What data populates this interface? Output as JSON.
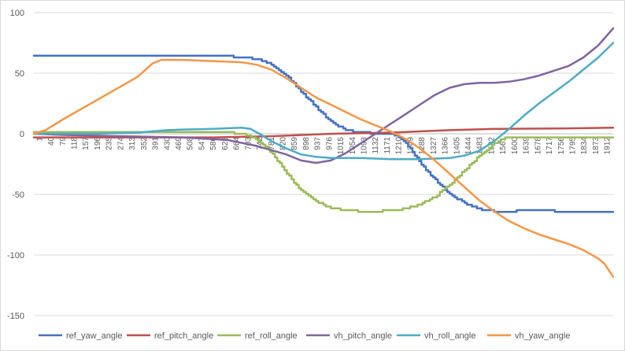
{
  "chart_data": {
    "type": "line",
    "title": "",
    "xlabel": "",
    "ylabel": "",
    "ylim": [
      -150,
      100
    ],
    "yticks": [
      100,
      50,
      0,
      -50,
      -100,
      -150
    ],
    "xlim": [
      1,
      1950
    ],
    "xtick_labels": [
      "1",
      "40",
      "79",
      "118",
      "157",
      "196",
      "235",
      "274",
      "313",
      "352",
      "391",
      "430",
      "469",
      "508",
      "547",
      "586",
      "625",
      "664",
      "703",
      "742",
      "781",
      "820",
      "859",
      "898",
      "937",
      "976",
      "1015",
      "1054",
      "1093",
      "1132",
      "1171",
      "1210",
      "1249",
      "1288",
      "1327",
      "1366",
      "1405",
      "1444",
      "1483",
      "1522",
      "1561",
      "1600",
      "1639",
      "1678",
      "1717",
      "1756",
      "1795",
      "1834",
      "1873",
      "1912"
    ],
    "grid": true,
    "legend_position": "bottom",
    "series": [
      {
        "name": "ref_yaw_angle",
        "color": "#4472C4",
        "stepped": true,
        "points": [
          [
            1,
            64
          ],
          [
            500,
            64
          ],
          [
            650,
            64
          ],
          [
            720,
            63
          ],
          [
            760,
            61
          ],
          [
            800,
            57
          ],
          [
            850,
            48
          ],
          [
            900,
            35
          ],
          [
            950,
            22
          ],
          [
            1000,
            10
          ],
          [
            1050,
            3
          ],
          [
            1100,
            1
          ],
          [
            1150,
            0.5
          ],
          [
            1200,
            0
          ],
          [
            1230,
            -3
          ],
          [
            1260,
            -10
          ],
          [
            1290,
            -20
          ],
          [
            1320,
            -30
          ],
          [
            1360,
            -40
          ],
          [
            1400,
            -50
          ],
          [
            1450,
            -57
          ],
          [
            1500,
            -62
          ],
          [
            1550,
            -64
          ],
          [
            1600,
            -64
          ],
          [
            1650,
            -63.5
          ],
          [
            1700,
            -63.5
          ],
          [
            1800,
            -64
          ],
          [
            1950,
            -64
          ]
        ]
      },
      {
        "name": "ref_pitch_angle",
        "color": "#C0504D",
        "stepped": false,
        "points": [
          [
            1,
            -3
          ],
          [
            300,
            -3
          ],
          [
            600,
            -3
          ],
          [
            800,
            -2
          ],
          [
            1000,
            0
          ],
          [
            1200,
            1
          ],
          [
            1400,
            3
          ],
          [
            1550,
            4
          ],
          [
            1800,
            4.5
          ],
          [
            1950,
            5
          ]
        ]
      },
      {
        "name": "ref_roll_angle",
        "color": "#9BBB59",
        "stepped": true,
        "points": [
          [
            1,
            1
          ],
          [
            400,
            1
          ],
          [
            660,
            1
          ],
          [
            700,
            0
          ],
          [
            740,
            -3
          ],
          [
            780,
            -10
          ],
          [
            820,
            -22
          ],
          [
            860,
            -35
          ],
          [
            900,
            -47
          ],
          [
            950,
            -56
          ],
          [
            1000,
            -61
          ],
          [
            1050,
            -63
          ],
          [
            1100,
            -64
          ],
          [
            1150,
            -64
          ],
          [
            1200,
            -63.5
          ],
          [
            1250,
            -62
          ],
          [
            1300,
            -58
          ],
          [
            1350,
            -52
          ],
          [
            1400,
            -42
          ],
          [
            1450,
            -30
          ],
          [
            1500,
            -18
          ],
          [
            1550,
            -8
          ],
          [
            1580,
            -4
          ],
          [
            1600,
            -3
          ],
          [
            1700,
            -3
          ],
          [
            1950,
            -3
          ]
        ]
      },
      {
        "name": "vh_pitch_angle",
        "color": "#8064A2",
        "stepped": false,
        "points": [
          [
            1,
            0
          ],
          [
            100,
            -1
          ],
          [
            300,
            -2
          ],
          [
            500,
            -3
          ],
          [
            650,
            -5
          ],
          [
            750,
            -10
          ],
          [
            850,
            -17
          ],
          [
            900,
            -22
          ],
          [
            950,
            -24
          ],
          [
            1000,
            -22
          ],
          [
            1050,
            -16
          ],
          [
            1100,
            -8
          ],
          [
            1150,
            0
          ],
          [
            1200,
            8
          ],
          [
            1250,
            16
          ],
          [
            1300,
            24
          ],
          [
            1350,
            32
          ],
          [
            1400,
            38
          ],
          [
            1450,
            41
          ],
          [
            1500,
            42
          ],
          [
            1550,
            42
          ],
          [
            1600,
            43
          ],
          [
            1650,
            45
          ],
          [
            1700,
            48
          ],
          [
            1750,
            52
          ],
          [
            1800,
            56
          ],
          [
            1850,
            63
          ],
          [
            1900,
            73
          ],
          [
            1950,
            87
          ]
        ]
      },
      {
        "name": "vh_roll_angle",
        "color": "#4BACC6",
        "stepped": false,
        "points": [
          [
            1,
            0
          ],
          [
            200,
            0
          ],
          [
            350,
            1
          ],
          [
            400,
            2
          ],
          [
            450,
            3
          ],
          [
            500,
            3.5
          ],
          [
            600,
            4
          ],
          [
            700,
            5
          ],
          [
            730,
            4
          ],
          [
            760,
            0
          ],
          [
            800,
            -6
          ],
          [
            850,
            -12
          ],
          [
            900,
            -17
          ],
          [
            950,
            -19
          ],
          [
            1000,
            -20
          ],
          [
            1100,
            -20
          ],
          [
            1200,
            -21
          ],
          [
            1300,
            -21
          ],
          [
            1400,
            -20
          ],
          [
            1450,
            -18
          ],
          [
            1500,
            -14
          ],
          [
            1550,
            -6
          ],
          [
            1600,
            4
          ],
          [
            1650,
            15
          ],
          [
            1700,
            25
          ],
          [
            1750,
            34
          ],
          [
            1800,
            43
          ],
          [
            1850,
            53
          ],
          [
            1900,
            63
          ],
          [
            1950,
            75
          ]
        ]
      },
      {
        "name": "vh_yaw_angle",
        "color": "#F79646",
        "stepped": false,
        "points": [
          [
            1,
            0
          ],
          [
            40,
            3
          ],
          [
            100,
            12
          ],
          [
            200,
            26
          ],
          [
            300,
            40
          ],
          [
            350,
            47
          ],
          [
            400,
            58
          ],
          [
            430,
            61
          ],
          [
            500,
            61
          ],
          [
            600,
            60
          ],
          [
            700,
            59
          ],
          [
            750,
            57
          ],
          [
            800,
            53
          ],
          [
            850,
            46
          ],
          [
            900,
            38
          ],
          [
            950,
            30
          ],
          [
            1000,
            24
          ],
          [
            1050,
            18
          ],
          [
            1100,
            12
          ],
          [
            1150,
            7
          ],
          [
            1200,
            2
          ],
          [
            1250,
            -4
          ],
          [
            1300,
            -12
          ],
          [
            1350,
            -22
          ],
          [
            1400,
            -33
          ],
          [
            1450,
            -44
          ],
          [
            1500,
            -55
          ],
          [
            1550,
            -64
          ],
          [
            1600,
            -72
          ],
          [
            1650,
            -78
          ],
          [
            1700,
            -83
          ],
          [
            1750,
            -87
          ],
          [
            1800,
            -91
          ],
          [
            1850,
            -96
          ],
          [
            1900,
            -103
          ],
          [
            1920,
            -107
          ],
          [
            1950,
            -118
          ]
        ]
      }
    ]
  }
}
